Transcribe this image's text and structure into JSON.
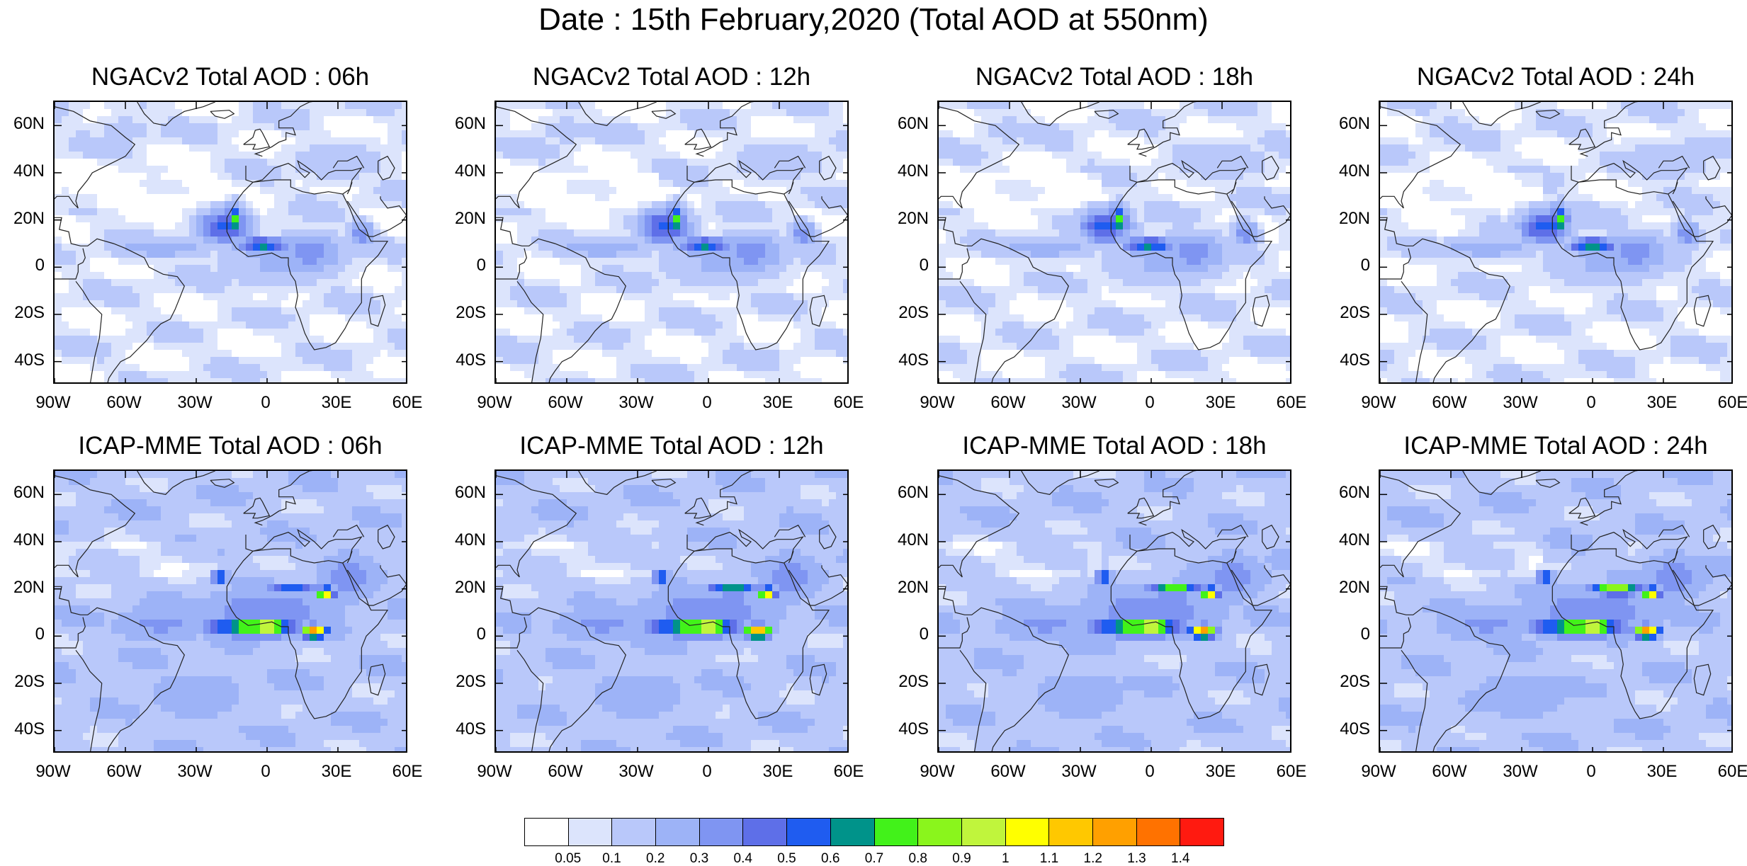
{
  "title": "Date : 15th February,2020 (Total AOD at 550nm)",
  "panels": [
    {
      "title": "NGACv2 Total AOD : 06h",
      "model": "ngac",
      "hour": 6
    },
    {
      "title": "NGACv2 Total AOD : 12h",
      "model": "ngac",
      "hour": 12
    },
    {
      "title": "NGACv2 Total AOD : 18h",
      "model": "ngac",
      "hour": 18
    },
    {
      "title": "NGACv2 Total AOD : 24h",
      "model": "ngac",
      "hour": 24
    },
    {
      "title": "ICAP-MME Total AOD : 06h",
      "model": "icap",
      "hour": 6
    },
    {
      "title": "ICAP-MME Total AOD : 12h",
      "model": "icap",
      "hour": 12
    },
    {
      "title": "ICAP-MME Total AOD : 18h",
      "model": "icap",
      "hour": 18
    },
    {
      "title": "ICAP-MME Total AOD : 24h",
      "model": "icap",
      "hour": 24
    }
  ],
  "lat_labels": [
    "60N",
    "40N",
    "20N",
    "0",
    "20S",
    "40S"
  ],
  "lat_values": [
    60,
    40,
    20,
    0,
    -20,
    -40
  ],
  "lon_labels": [
    "90W",
    "60W",
    "30W",
    "0",
    "30E",
    "60E"
  ],
  "lon_values": [
    -90,
    -60,
    -30,
    0,
    30,
    60
  ],
  "extent": {
    "lon": [
      -90,
      60
    ],
    "lat": [
      -50,
      70
    ]
  },
  "colorbar": {
    "labels": [
      "0.05",
      "0.1",
      "0.2",
      "0.3",
      "0.4",
      "0.5",
      "0.6",
      "0.7",
      "0.8",
      "0.9",
      "1",
      "1.1",
      "1.2",
      "1.3",
      "1.4"
    ],
    "colors": [
      "#ffffff",
      "#dce4fc",
      "#b9c8fa",
      "#9db3f7",
      "#7f95f2",
      "#5e6fe8",
      "#1f5cf0",
      "#00938a",
      "#42f21a",
      "#8af51c",
      "#c0f53c",
      "#ffff00",
      "#ffc800",
      "#ffa000",
      "#ff7200",
      "#ff1a10"
    ]
  }
}
